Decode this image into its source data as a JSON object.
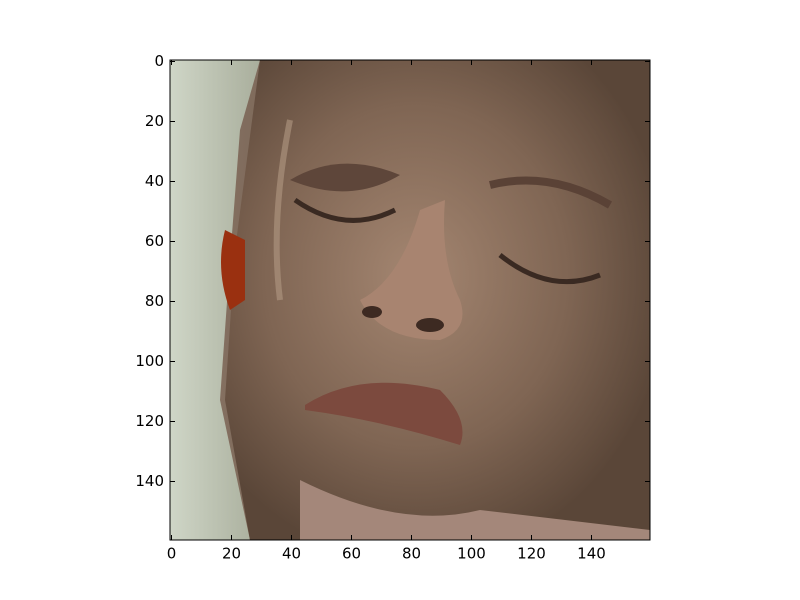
{
  "chart_data": {
    "type": "image",
    "xlim": [
      -0.5,
      159.5
    ],
    "ylim": [
      159.5,
      -0.5
    ],
    "xticks": [
      0,
      20,
      40,
      60,
      80,
      100,
      120,
      140
    ],
    "yticks": [
      0,
      20,
      40,
      60,
      80,
      100,
      120,
      140
    ]
  }
}
